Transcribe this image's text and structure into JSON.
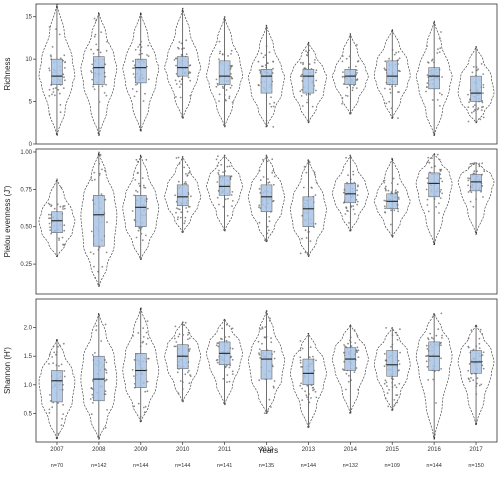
{
  "chart_data": {
    "type": "box",
    "xlabel": "Years",
    "categories": [
      "2007",
      "2008",
      "2009",
      "2010",
      "2011",
      "2012",
      "2013",
      "2014",
      "2015",
      "2016",
      "2017"
    ],
    "sample_sizes": [
      "n=70",
      "n=142",
      "n=144",
      "n=144",
      "n=141",
      "n=135",
      "n=144",
      "n=132",
      "n=109",
      "n=144",
      "n=150"
    ],
    "colors": {
      "box_fill": "#a9c4e6",
      "box_stroke": "#555555",
      "points": "#6f6f6f",
      "violin": "#333333",
      "panel_border": "#333333"
    },
    "panels": [
      {
        "ylabel": "Richness",
        "ylim": [
          0,
          16.5
        ],
        "yticks": [
          0,
          5,
          10,
          15
        ],
        "ytick_labels": [
          "0",
          "5",
          "10",
          "15"
        ],
        "series": [
          {
            "min": 1,
            "q1": 7,
            "median": 8,
            "q3": 10,
            "max": 16.5
          },
          {
            "min": 1,
            "q1": 7,
            "median": 9,
            "q3": 10.3,
            "max": 15.5
          },
          {
            "min": 1.5,
            "q1": 7.2,
            "median": 9,
            "q3": 10,
            "max": 15.5
          },
          {
            "min": 3,
            "q1": 8,
            "median": 9,
            "q3": 10.3,
            "max": 16
          },
          {
            "min": 2,
            "q1": 7,
            "median": 8,
            "q3": 9.8,
            "max": 15
          },
          {
            "min": 2,
            "q1": 6,
            "median": 8,
            "q3": 8.8,
            "max": 14
          },
          {
            "min": 2.5,
            "q1": 6,
            "median": 8,
            "q3": 8.8,
            "max": 12
          },
          {
            "min": 3.5,
            "q1": 7,
            "median": 8,
            "q3": 8.8,
            "max": 13
          },
          {
            "min": 3,
            "q1": 7,
            "median": 8,
            "q3": 9.8,
            "max": 13.5
          },
          {
            "min": 1,
            "q1": 6.5,
            "median": 8,
            "q3": 9,
            "max": 14.5
          },
          {
            "min": 2.5,
            "q1": 5,
            "median": 6,
            "q3": 8,
            "max": 11.5
          }
        ]
      },
      {
        "ylabel": "Pielou evenness (J')",
        "ylim": [
          0.05,
          1.02
        ],
        "yticks": [
          0.25,
          0.5,
          0.75,
          1.0
        ],
        "ytick_labels": [
          "0.25",
          "0.50",
          "0.75",
          "1.00"
        ],
        "series": [
          {
            "min": 0.3,
            "q1": 0.46,
            "median": 0.54,
            "q3": 0.6,
            "max": 0.82
          },
          {
            "min": 0.1,
            "q1": 0.37,
            "median": 0.58,
            "q3": 0.71,
            "max": 1.0
          },
          {
            "min": 0.28,
            "q1": 0.5,
            "median": 0.63,
            "q3": 0.71,
            "max": 0.98
          },
          {
            "min": 0.46,
            "q1": 0.64,
            "median": 0.7,
            "q3": 0.78,
            "max": 0.97
          },
          {
            "min": 0.47,
            "q1": 0.71,
            "median": 0.77,
            "q3": 0.84,
            "max": 0.98
          },
          {
            "min": 0.4,
            "q1": 0.6,
            "median": 0.7,
            "q3": 0.78,
            "max": 0.98
          },
          {
            "min": 0.3,
            "q1": 0.5,
            "median": 0.62,
            "q3": 0.7,
            "max": 0.95
          },
          {
            "min": 0.47,
            "q1": 0.66,
            "median": 0.72,
            "q3": 0.79,
            "max": 0.98
          },
          {
            "min": 0.43,
            "q1": 0.62,
            "median": 0.67,
            "q3": 0.72,
            "max": 0.96
          },
          {
            "min": 0.38,
            "q1": 0.7,
            "median": 0.79,
            "q3": 0.86,
            "max": 0.99
          },
          {
            "min": 0.45,
            "q1": 0.74,
            "median": 0.8,
            "q3": 0.85,
            "max": 0.93
          }
        ]
      },
      {
        "ylabel": "Shannon (H')",
        "ylim": [
          0,
          2.5
        ],
        "yticks": [
          0.5,
          1.0,
          1.5,
          2.0
        ],
        "ytick_labels": [
          "0.5",
          "1.0",
          "1.5",
          "2.0"
        ],
        "series": [
          {
            "min": 0.05,
            "q1": 0.7,
            "median": 1.07,
            "q3": 1.25,
            "max": 1.8
          },
          {
            "min": 0.05,
            "q1": 0.72,
            "median": 1.1,
            "q3": 1.5,
            "max": 2.25
          },
          {
            "min": 0.35,
            "q1": 0.95,
            "median": 1.25,
            "q3": 1.55,
            "max": 2.35
          },
          {
            "min": 0.7,
            "q1": 1.28,
            "median": 1.5,
            "q3": 1.7,
            "max": 2.1
          },
          {
            "min": 0.65,
            "q1": 1.35,
            "median": 1.55,
            "q3": 1.75,
            "max": 2.15
          },
          {
            "min": 0.5,
            "q1": 1.1,
            "median": 1.45,
            "q3": 1.6,
            "max": 2.3
          },
          {
            "min": 0.25,
            "q1": 1.0,
            "median": 1.2,
            "q3": 1.45,
            "max": 1.9
          },
          {
            "min": 0.5,
            "q1": 1.25,
            "median": 1.45,
            "q3": 1.65,
            "max": 2.05
          },
          {
            "min": 0.55,
            "q1": 1.15,
            "median": 1.35,
            "q3": 1.6,
            "max": 2.0
          },
          {
            "min": 0.05,
            "q1": 1.25,
            "median": 1.5,
            "q3": 1.75,
            "max": 2.25
          },
          {
            "min": 0.3,
            "q1": 1.2,
            "median": 1.4,
            "q3": 1.6,
            "max": 2.05
          }
        ]
      }
    ]
  }
}
